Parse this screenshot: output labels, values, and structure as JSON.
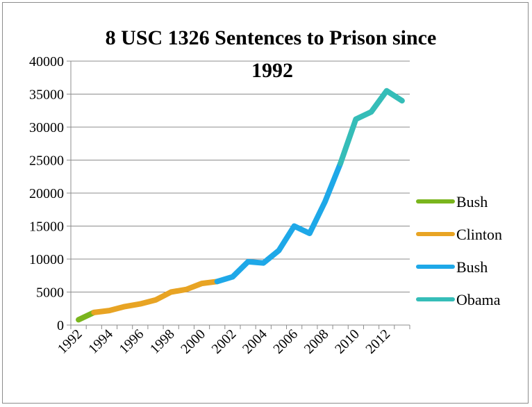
{
  "chart_data": {
    "type": "line",
    "title_line1": "8 USC 1326 Sentences to Prison since",
    "title_line2": "1992",
    "xlabel": "",
    "ylabel": "",
    "ylim": [
      0,
      40000
    ],
    "yticks": [
      "0",
      "5000",
      "10000",
      "15000",
      "20000",
      "25000",
      "30000",
      "35000",
      "40000"
    ],
    "xticks": [
      "1992",
      "1994",
      "1996",
      "1998",
      "2000",
      "2002",
      "2004",
      "2006",
      "2008",
      "2010",
      "2012"
    ],
    "grid": true,
    "legend_position": "right",
    "x": [
      1992,
      1993,
      1994,
      1995,
      1996,
      1997,
      1998,
      1999,
      2000,
      2001,
      2002,
      2003,
      2004,
      2005,
      2006,
      2007,
      2008,
      2009,
      2010,
      2011,
      2012,
      2013
    ],
    "series": [
      {
        "name": "Bush",
        "color": "#7ab51d",
        "x": [
          1992,
          1993
        ],
        "values": [
          800,
          1900
        ]
      },
      {
        "name": "Clinton",
        "color": "#e8a424",
        "x": [
          1993,
          1994,
          1995,
          1996,
          1997,
          1998,
          1999,
          2000,
          2001
        ],
        "values": [
          1900,
          2200,
          2800,
          3200,
          3800,
          5000,
          5400,
          6300,
          6600
        ]
      },
      {
        "name": "Bush",
        "color": "#1ea8e8",
        "x": [
          2001,
          2002,
          2003,
          2004,
          2005,
          2006,
          2007,
          2008,
          2009
        ],
        "values": [
          6600,
          7300,
          9600,
          9400,
          11300,
          15000,
          13900,
          18700,
          24500
        ]
      },
      {
        "name": "Obama",
        "color": "#35bdb8",
        "x": [
          2009,
          2010,
          2011,
          2012,
          2013
        ],
        "values": [
          24500,
          31200,
          32300,
          35500,
          34000
        ]
      }
    ]
  }
}
